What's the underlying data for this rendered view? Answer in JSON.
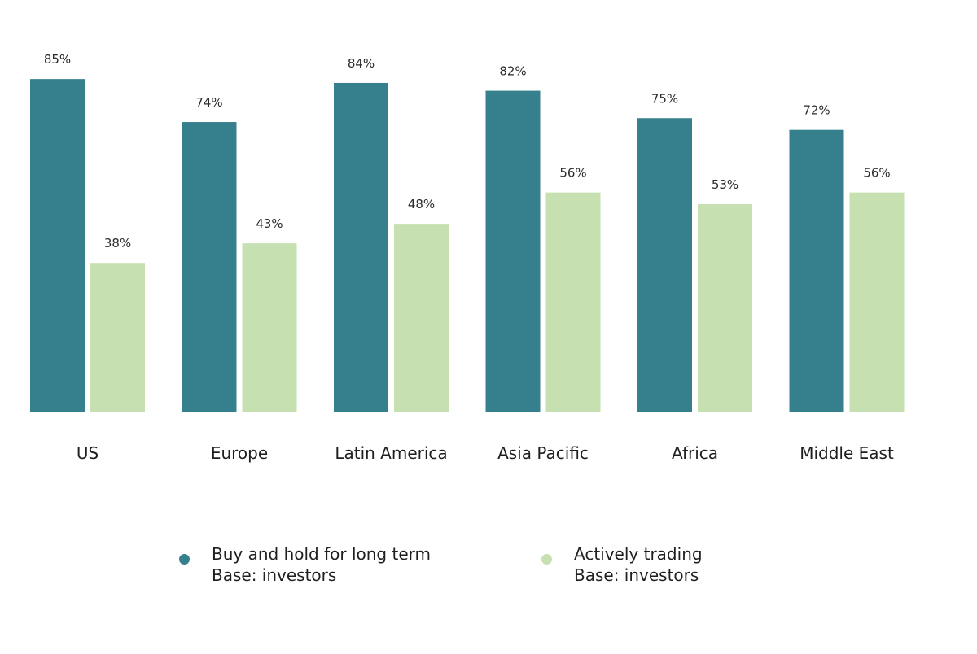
{
  "colors": {
    "series1": "#367f8c",
    "series2": "#c7e0b1"
  },
  "chart_data": {
    "type": "bar",
    "categories": [
      "US",
      "Europe",
      "Latin America",
      "Asia Pacific",
      "Africa",
      "Middle East"
    ],
    "series": [
      {
        "name": "Buy and hold for long term",
        "base": "Base: investors",
        "values": [
          85,
          74,
          84,
          82,
          75,
          72
        ]
      },
      {
        "name": "Actively trading",
        "base": "Base: investors",
        "values": [
          38,
          43,
          48,
          56,
          53,
          56
        ]
      }
    ],
    "value_suffix": "%",
    "ylim": [
      0,
      100
    ],
    "grid": false,
    "legend": "bottom"
  }
}
